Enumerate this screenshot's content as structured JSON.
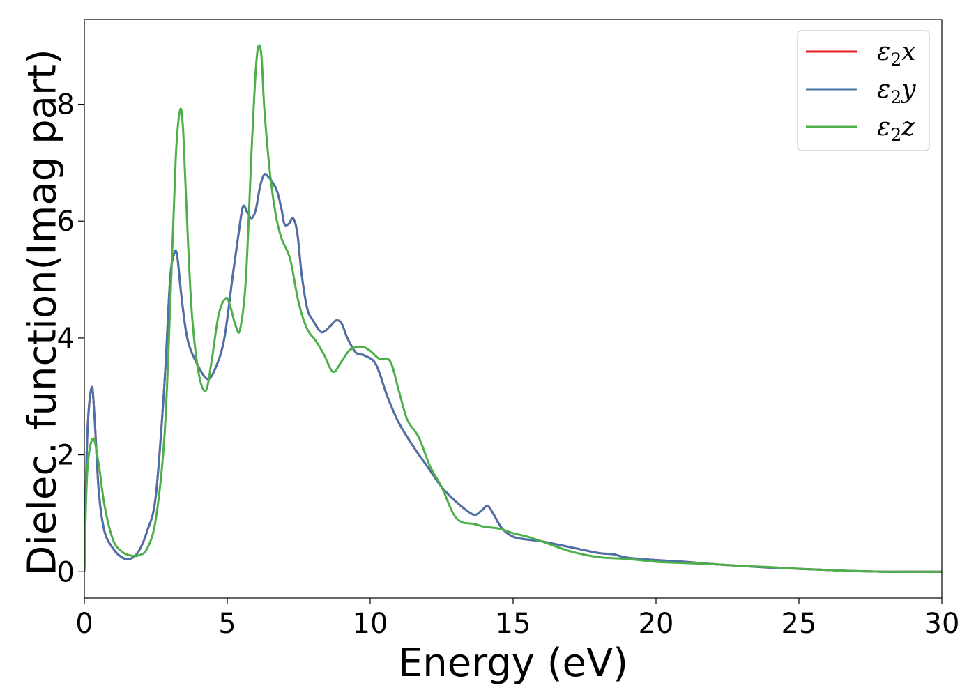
{
  "chart_data": {
    "type": "line",
    "xlabel": "Energy (eV)",
    "ylabel": "Dielec. function(Imag part)",
    "xlim": [
      0,
      30
    ],
    "ylim": [
      -0.45,
      9.45
    ],
    "xticks": [
      0,
      5,
      10,
      15,
      20,
      25,
      30
    ],
    "yticks": [
      0,
      2,
      4,
      6,
      8
    ],
    "xtick_labels": [
      "0",
      "5",
      "10",
      "15",
      "20",
      "25",
      "30"
    ],
    "ytick_labels": [
      "0",
      "2",
      "4",
      "6",
      "8"
    ],
    "grid": false,
    "legend_position": "top-right",
    "series": [
      {
        "name": "ε2x",
        "symbol": "ε",
        "sub": "2",
        "axis": "x",
        "color": "#e41a1c",
        "x": [
          0,
          0.1,
          0.25,
          0.35,
          0.5,
          0.7,
          1.0,
          1.3,
          1.6,
          1.9,
          2.2,
          2.5,
          2.8,
          3.0,
          3.15,
          3.25,
          3.4,
          3.6,
          3.9,
          4.3,
          4.6,
          4.9,
          5.2,
          5.4,
          5.55,
          5.7,
          5.85,
          6.0,
          6.15,
          6.3,
          6.45,
          6.6,
          6.75,
          6.9,
          7.0,
          7.15,
          7.3,
          7.45,
          7.6,
          7.8,
          8.0,
          8.3,
          8.6,
          8.8,
          9.0,
          9.2,
          9.5,
          9.8,
          10.2,
          10.6,
          11.0,
          11.5,
          12.0,
          12.5,
          13.0,
          13.6,
          13.9,
          14.1,
          14.3,
          14.6,
          15.0,
          15.5,
          16.0,
          17.0,
          18.0,
          18.5,
          19.0,
          20.0,
          21.0,
          22.0,
          23.0,
          24.0,
          25.0,
          26.0,
          27.0,
          28.0,
          29.0,
          30.0
        ],
        "values": [
          0,
          2.3,
          3.15,
          2.7,
          1.4,
          0.7,
          0.4,
          0.25,
          0.22,
          0.35,
          0.7,
          1.3,
          3.2,
          5.0,
          5.45,
          5.4,
          4.7,
          4.0,
          3.6,
          3.3,
          3.5,
          4.0,
          5.1,
          5.8,
          6.25,
          6.15,
          6.05,
          6.2,
          6.6,
          6.8,
          6.75,
          6.65,
          6.5,
          6.2,
          5.95,
          5.95,
          6.05,
          5.8,
          5.1,
          4.5,
          4.3,
          4.1,
          4.2,
          4.3,
          4.25,
          4.0,
          3.75,
          3.7,
          3.55,
          3.0,
          2.55,
          2.15,
          1.8,
          1.45,
          1.2,
          0.98,
          1.05,
          1.13,
          1.0,
          0.75,
          0.6,
          0.55,
          0.52,
          0.42,
          0.32,
          0.3,
          0.24,
          0.2,
          0.17,
          0.13,
          0.1,
          0.07,
          0.05,
          0.03,
          0.01,
          0.0,
          0.0,
          0.0
        ]
      },
      {
        "name": "ε2y",
        "symbol": "ε",
        "sub": "2",
        "axis": "y",
        "color": "#4a72a8",
        "x": [
          0,
          0.1,
          0.25,
          0.35,
          0.5,
          0.7,
          1.0,
          1.3,
          1.6,
          1.9,
          2.2,
          2.5,
          2.8,
          3.0,
          3.15,
          3.25,
          3.4,
          3.6,
          3.9,
          4.3,
          4.6,
          4.9,
          5.2,
          5.4,
          5.55,
          5.7,
          5.85,
          6.0,
          6.15,
          6.3,
          6.45,
          6.6,
          6.75,
          6.9,
          7.0,
          7.15,
          7.3,
          7.45,
          7.6,
          7.8,
          8.0,
          8.3,
          8.6,
          8.8,
          9.0,
          9.2,
          9.5,
          9.8,
          10.2,
          10.6,
          11.0,
          11.5,
          12.0,
          12.5,
          13.0,
          13.6,
          13.9,
          14.1,
          14.3,
          14.6,
          15.0,
          15.5,
          16.0,
          17.0,
          18.0,
          18.5,
          19.0,
          20.0,
          21.0,
          22.0,
          23.0,
          24.0,
          25.0,
          26.0,
          27.0,
          28.0,
          29.0,
          30.0
        ],
        "values": [
          0,
          2.3,
          3.15,
          2.7,
          1.4,
          0.7,
          0.4,
          0.25,
          0.22,
          0.35,
          0.7,
          1.3,
          3.2,
          5.0,
          5.45,
          5.4,
          4.7,
          4.0,
          3.6,
          3.3,
          3.5,
          4.0,
          5.1,
          5.8,
          6.25,
          6.15,
          6.05,
          6.2,
          6.6,
          6.8,
          6.75,
          6.65,
          6.5,
          6.2,
          5.95,
          5.95,
          6.05,
          5.8,
          5.1,
          4.5,
          4.3,
          4.1,
          4.2,
          4.3,
          4.25,
          4.0,
          3.75,
          3.7,
          3.55,
          3.0,
          2.55,
          2.15,
          1.8,
          1.45,
          1.2,
          0.98,
          1.05,
          1.13,
          1.0,
          0.75,
          0.6,
          0.55,
          0.52,
          0.42,
          0.32,
          0.3,
          0.24,
          0.2,
          0.17,
          0.13,
          0.1,
          0.07,
          0.05,
          0.03,
          0.01,
          0.0,
          0.0,
          0.0
        ]
      },
      {
        "name": "ε2z",
        "symbol": "ε",
        "sub": "2",
        "axis": "z",
        "color": "#4daf4a",
        "x": [
          0,
          0.1,
          0.3,
          0.5,
          0.7,
          1.0,
          1.3,
          1.6,
          1.9,
          2.2,
          2.5,
          2.8,
          3.0,
          3.2,
          3.35,
          3.45,
          3.55,
          3.75,
          4.0,
          4.25,
          4.45,
          4.7,
          4.95,
          5.1,
          5.3,
          5.45,
          5.65,
          5.85,
          6.0,
          6.1,
          6.2,
          6.3,
          6.5,
          6.7,
          6.9,
          7.2,
          7.5,
          7.8,
          8.1,
          8.4,
          8.7,
          9.0,
          9.3,
          9.7,
          10.0,
          10.3,
          10.7,
          11.0,
          11.3,
          11.7,
          12.1,
          12.5,
          12.9,
          13.2,
          13.6,
          14.0,
          14.5,
          15.0,
          15.5,
          16.0,
          17.0,
          18.0,
          19.0,
          20.0,
          21.0,
          22.0,
          23.0,
          24.0,
          25.0,
          26.0,
          27.0,
          28.0,
          29.0,
          30.0
        ],
        "values": [
          0,
          1.7,
          2.28,
          1.85,
          1.15,
          0.55,
          0.35,
          0.28,
          0.28,
          0.4,
          0.9,
          2.3,
          4.5,
          7.1,
          7.9,
          7.6,
          6.5,
          4.5,
          3.4,
          3.1,
          3.6,
          4.4,
          4.68,
          4.55,
          4.2,
          4.15,
          5.0,
          7.2,
          8.6,
          9.0,
          8.8,
          7.9,
          6.8,
          6.1,
          5.7,
          5.35,
          4.6,
          4.15,
          3.95,
          3.7,
          3.42,
          3.6,
          3.8,
          3.85,
          3.78,
          3.65,
          3.6,
          3.1,
          2.6,
          2.3,
          1.8,
          1.45,
          1.0,
          0.85,
          0.82,
          0.77,
          0.74,
          0.66,
          0.6,
          0.52,
          0.35,
          0.25,
          0.22,
          0.17,
          0.15,
          0.13,
          0.1,
          0.08,
          0.05,
          0.03,
          0.01,
          0.0,
          0.0,
          0.0
        ]
      }
    ]
  }
}
